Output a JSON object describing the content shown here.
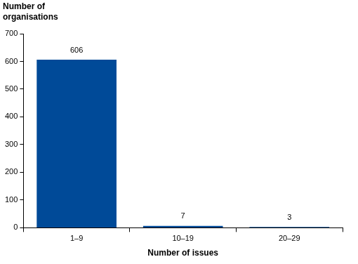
{
  "chart_data": {
    "type": "bar",
    "y_label": "Number of organisations",
    "x_label": "Number of issues",
    "categories": [
      "1–9",
      "10–19",
      "20–29"
    ],
    "values": [
      606,
      7,
      3
    ],
    "color": "#004a98",
    "ylim": [
      0,
      700
    ],
    "yticks": [
      0,
      100,
      200,
      300,
      400,
      500,
      600,
      700
    ],
    "grid": false,
    "data_labels": true
  }
}
